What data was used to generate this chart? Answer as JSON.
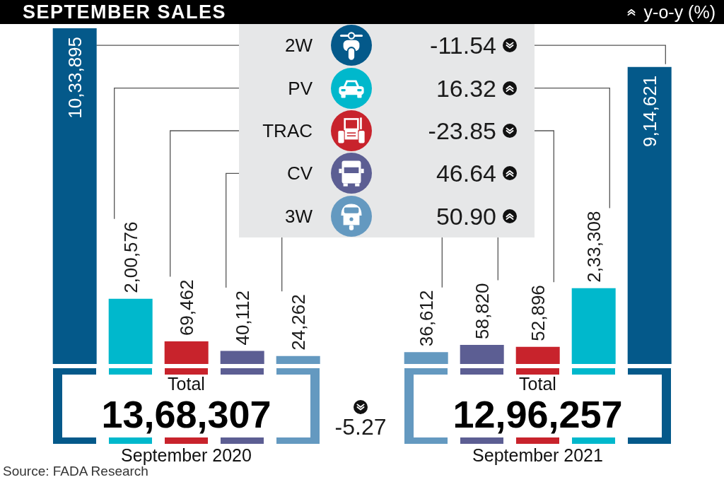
{
  "chart_data": [
    {
      "type": "bar",
      "title": "SEPTEMBER SALES",
      "xlabel": "September 2020",
      "categories": [
        null,
        null,
        null,
        null,
        null
      ],
      "values": [
        1033895,
        200576,
        69462,
        40112,
        24262
      ],
      "value_labels": [
        "10,33,895",
        "2,00,576",
        "69,462",
        "40,112",
        "24,262"
      ],
      "colors": [
        "#04598a",
        "#00b8cc",
        "#c8232c",
        "#5c5e93",
        "#6499c0"
      ],
      "tick_labels": false,
      "annotations": [
        "Total",
        "13,68,307",
        "Source: FADA Research"
      ]
    },
    {
      "type": "other",
      "title": "y-o-y (%)",
      "categories": [
        "2W",
        "PV",
        "TRAC",
        "CV",
        "3W"
      ],
      "values": [
        -11.54,
        16.32,
        -23.85,
        46.64,
        50.9
      ],
      "value_labels": [
        "-11.54",
        "16.32",
        "-23.85",
        "46.64",
        "50.90"
      ],
      "annotations": [
        "-5.27"
      ]
    },
    {
      "type": "bar",
      "xlabel": "September 2021",
      "categories": [
        null,
        null,
        null,
        null,
        null
      ],
      "values": [
        36612,
        58820,
        52896,
        233308,
        914621
      ],
      "value_labels": [
        "36,612",
        "58,820",
        "52,896",
        "2,33,308",
        "9,14,621"
      ],
      "colors": [
        "#6499c0",
        "#5c5e93",
        "#c8232c",
        "#00b8cc",
        "#04598a"
      ],
      "tick_labels": false,
      "annotations": [
        "Total",
        "12,96,257"
      ]
    }
  ]
}
